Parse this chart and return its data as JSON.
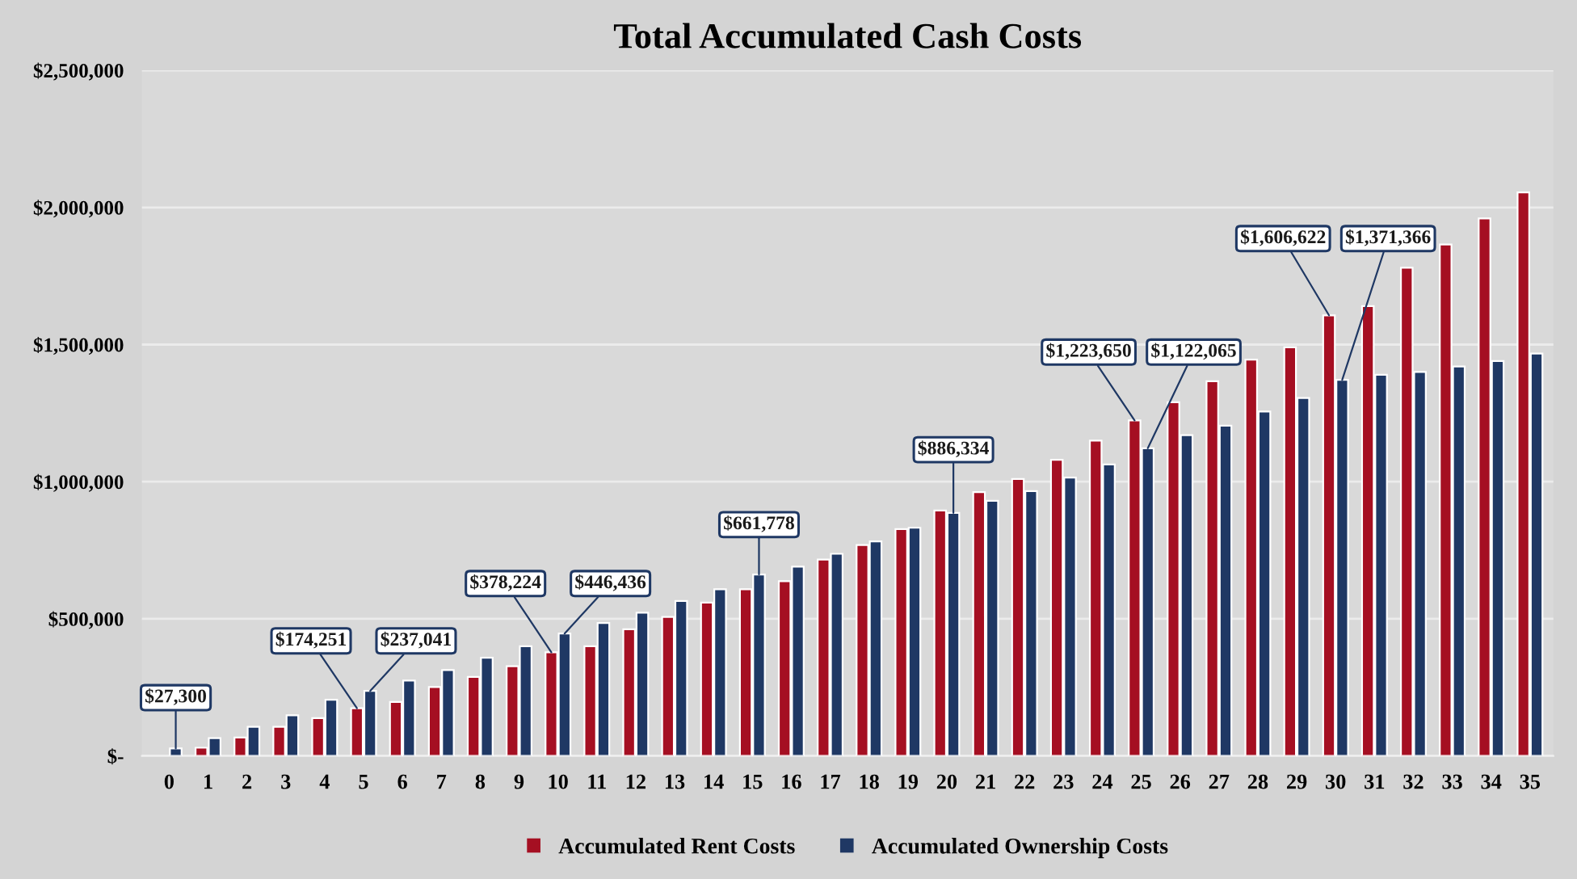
{
  "chart_data": {
    "type": "bar",
    "title": "Total Accumulated Cash Costs",
    "categories": [
      "0",
      "1",
      "2",
      "3",
      "4",
      "5",
      "6",
      "7",
      "8",
      "9",
      "10",
      "11",
      "12",
      "13",
      "14",
      "15",
      "16",
      "17",
      "18",
      "19",
      "20",
      "21",
      "22",
      "23",
      "24",
      "25",
      "26",
      "27",
      "28",
      "29",
      "30",
      "31",
      "32",
      "33",
      "34",
      "35"
    ],
    "series": [
      {
        "name": "Accumulated Rent Costs",
        "color": "#a50f22",
        "values": [
          0,
          30000,
          67000,
          106000,
          138000,
          174251,
          197000,
          251000,
          288000,
          327000,
          378224,
          400000,
          462000,
          507000,
          559000,
          608000,
          637000,
          716000,
          769000,
          827000,
          895000,
          962000,
          1010000,
          1080000,
          1150000,
          1223650,
          1290000,
          1366000,
          1445000,
          1490000,
          1606622,
          1640000,
          1780000,
          1865000,
          1960000,
          2055000
        ],
        "value_labels": [
          null,
          null,
          null,
          null,
          null,
          "$174,251",
          null,
          null,
          null,
          null,
          "$378,224",
          null,
          null,
          null,
          null,
          null,
          null,
          null,
          null,
          null,
          null,
          null,
          null,
          null,
          null,
          "$1,223,650",
          null,
          null,
          null,
          null,
          "$1,606,622",
          null,
          null,
          null,
          null,
          null
        ]
      },
      {
        "name": "Accumulated Ownership Costs",
        "color": "#1f3864",
        "values": [
          27300,
          65000,
          106000,
          148000,
          205000,
          237041,
          275000,
          313000,
          358000,
          400000,
          446436,
          485000,
          522000,
          565000,
          608000,
          661778,
          690000,
          737000,
          782000,
          832000,
          886334,
          930000,
          966000,
          1015000,
          1063000,
          1122065,
          1170000,
          1204000,
          1256000,
          1305000,
          1371366,
          1390000,
          1400000,
          1420000,
          1440000,
          1467000
        ],
        "value_labels": [
          "$27,300",
          null,
          null,
          null,
          null,
          "$237,041",
          null,
          null,
          null,
          null,
          "$446,436",
          null,
          null,
          null,
          null,
          "$661,778",
          null,
          null,
          null,
          null,
          "$886,334",
          null,
          null,
          null,
          null,
          "$1,122,065",
          null,
          null,
          null,
          null,
          "$1,371,366",
          null,
          null,
          null,
          null,
          null
        ]
      }
    ],
    "ylim": [
      0,
      2500000
    ],
    "yticks": [
      {
        "value": 0,
        "label": "$-"
      },
      {
        "value": 500000,
        "label": "$500,000"
      },
      {
        "value": 1000000,
        "label": "$1,000,000"
      },
      {
        "value": 1500000,
        "label": "$1,500,000"
      },
      {
        "value": 2000000,
        "label": "$2,000,000"
      },
      {
        "value": 2500000,
        "label": "$2,500,000"
      }
    ],
    "grid": "y",
    "legend": "bottom"
  }
}
